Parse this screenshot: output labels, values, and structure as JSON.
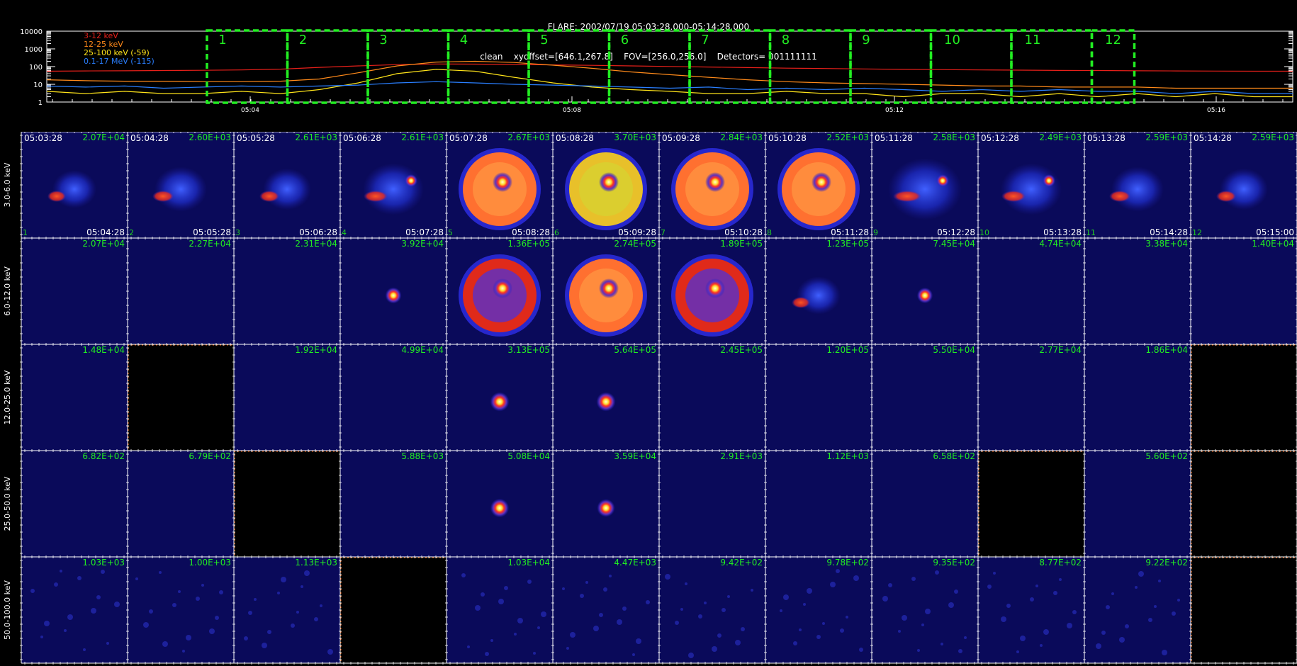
{
  "header": {
    "title": "FLARE: 2002/07/19 05:03:28.000-05:14:28.000",
    "subtitle": "clean    xyoffset=[646.1,267.8]    FOV=[256.0,256.0]    Detectors= 001111111"
  },
  "lightcurve": {
    "y_ticks": [
      "10000",
      "1000",
      "100",
      "10",
      "1"
    ],
    "x_ticks": [
      "05:04",
      "05:08",
      "05:12",
      "05:16"
    ],
    "legend": [
      {
        "label": "3-12 keV",
        "color": "#e8201a"
      },
      {
        "label": "12-25 keV",
        "color": "#ff8a1a"
      },
      {
        "label": "25-100 keV (-59)",
        "color": "#ffe41a"
      },
      {
        "label": "0.1-17 MeV (-115)",
        "color": "#2a7fff"
      }
    ],
    "interval_labels": [
      "1",
      "2",
      "3",
      "4",
      "5",
      "6",
      "7",
      "8",
      "9",
      "10",
      "11",
      "12"
    ],
    "interval_color": "#22ee22",
    "series": [
      {
        "name": "3-12 keV",
        "color": "#e8201a",
        "values": [
          55,
          57,
          58,
          60,
          62,
          65,
          72,
          90,
          110,
          130,
          140,
          138,
          132,
          125,
          118,
          110,
          102,
          95,
          88,
          82,
          78,
          74,
          70,
          67,
          65,
          63,
          61,
          60,
          58,
          57,
          56,
          55,
          55
        ]
      },
      {
        "name": "12-25 keV",
        "color": "#ff8a1a",
        "values": [
          18,
          16,
          15,
          15,
          14,
          14,
          15,
          20,
          45,
          110,
          180,
          200,
          170,
          120,
          80,
          50,
          35,
          25,
          18,
          14,
          12,
          11,
          10,
          9,
          8,
          8,
          7,
          7,
          7,
          6,
          6,
          6,
          6
        ]
      },
      {
        "name": "25-100 keV (-59)",
        "color": "#ffe41a",
        "values": [
          4,
          3,
          4,
          3,
          3,
          4,
          3,
          5,
          12,
          40,
          70,
          55,
          25,
          12,
          7,
          5,
          4,
          3,
          3,
          4,
          3,
          3,
          2,
          3,
          3,
          2,
          3,
          2,
          3,
          2,
          3,
          2,
          2
        ]
      },
      {
        "name": "0.1-17 MeV (-115)",
        "color": "#2a7fff",
        "values": [
          8,
          7,
          8,
          6,
          7,
          8,
          7,
          8,
          9,
          12,
          14,
          12,
          10,
          9,
          8,
          7,
          6,
          7,
          5,
          6,
          5,
          6,
          5,
          4,
          5,
          4,
          5,
          4,
          4,
          3,
          4,
          3,
          3
        ]
      }
    ]
  },
  "rows": [
    {
      "label": "3.0-6.0 keV",
      "values": [
        "2.07E+04",
        "2.60E+03",
        "2.61E+03",
        "2.61E+03",
        "2.67E+03",
        "3.70E+03",
        "2.84E+03",
        "2.52E+03",
        "2.58E+03",
        "2.49E+03",
        "2.59E+03",
        "2.59E+03"
      ]
    },
    {
      "label": "6.0-12.0 keV",
      "values": [
        "2.07E+04",
        "2.27E+04",
        "2.31E+04",
        "3.92E+04",
        "1.36E+05",
        "2.74E+05",
        "1.89E+05",
        "1.23E+05",
        "7.45E+04",
        "4.74E+04",
        "3.38E+04",
        "1.40E+04"
      ]
    },
    {
      "label": "12.0-25.0 keV",
      "values": [
        "1.48E+04",
        "",
        "1.92E+04",
        "4.99E+04",
        "3.13E+05",
        "5.64E+05",
        "2.45E+05",
        "1.20E+05",
        "5.50E+04",
        "2.77E+04",
        "1.86E+04",
        ""
      ]
    },
    {
      "label": "25.0-50.0 keV",
      "values": [
        "6.82E+02",
        "6.79E+02",
        "",
        "5.88E+03",
        "5.08E+04",
        "3.59E+04",
        "2.91E+03",
        "1.12E+03",
        "6.58E+02",
        "",
        "5.60E+02",
        ""
      ]
    },
    {
      "label": "50.0-100.0 keV",
      "values": [
        "1.03E+03",
        "1.00E+03",
        "1.13E+03",
        "",
        "1.03E+04",
        "4.47E+03",
        "9.42E+02",
        "9.78E+02",
        "9.35E+02",
        "8.77E+02",
        "9.22E+02",
        ""
      ]
    }
  ],
  "times_start": [
    "05:03:28",
    "05:04:28",
    "05:05:28",
    "05:06:28",
    "05:07:28",
    "05:08:28",
    "05:09:28",
    "05:10:28",
    "05:11:28",
    "05:12:28",
    "05:13:28",
    "05:14:28"
  ],
  "times_end": [
    "05:04:28",
    "05:05:28",
    "05:06:28",
    "05:07:28",
    "05:08:28",
    "05:09:28",
    "05:10:28",
    "05:11:28",
    "05:12:28",
    "05:13:28",
    "05:14:28",
    "05:15:00"
  ],
  "blank_cells": [
    [
      2,
      1
    ],
    [
      2,
      11
    ],
    [
      3,
      2
    ],
    [
      3,
      9
    ],
    [
      3,
      11
    ],
    [
      4,
      3
    ],
    [
      4,
      11
    ]
  ],
  "images": [
    [
      {
        "kind": "patch",
        "intensity": 0.35
      },
      {
        "kind": "patch",
        "intensity": 0.45
      },
      {
        "kind": "patch",
        "intensity": 0.4
      },
      {
        "kind": "patch",
        "intensity": 0.55
      },
      {
        "kind": "ring",
        "intensity": 0.85
      },
      {
        "kind": "ring",
        "intensity": 1.0
      },
      {
        "kind": "ring",
        "intensity": 0.9
      },
      {
        "kind": "ring",
        "intensity": 0.8
      },
      {
        "kind": "patch",
        "intensity": 0.7
      },
      {
        "kind": "patch",
        "intensity": 0.55
      },
      {
        "kind": "patch",
        "intensity": 0.45
      },
      {
        "kind": "patch",
        "intensity": 0.4
      }
    ],
    [
      {
        "kind": "none",
        "intensity": 0
      },
      {
        "kind": "none",
        "intensity": 0
      },
      {
        "kind": "none",
        "intensity": 0
      },
      {
        "kind": "dot",
        "intensity": 0.25
      },
      {
        "kind": "ring",
        "intensity": 0.45
      },
      {
        "kind": "ring",
        "intensity": 0.8
      },
      {
        "kind": "ring",
        "intensity": 0.4
      },
      {
        "kind": "patch",
        "intensity": 0.35
      },
      {
        "kind": "dot",
        "intensity": 0.2
      },
      {
        "kind": "none",
        "intensity": 0
      },
      {
        "kind": "none",
        "intensity": 0
      },
      {
        "kind": "none",
        "intensity": 0
      }
    ],
    [
      {
        "kind": "none",
        "intensity": 0
      },
      {
        "kind": "none",
        "intensity": 0
      },
      {
        "kind": "none",
        "intensity": 0
      },
      {
        "kind": "none",
        "intensity": 0
      },
      {
        "kind": "dot",
        "intensity": 0.6
      },
      {
        "kind": "dot",
        "intensity": 0.6
      },
      {
        "kind": "none",
        "intensity": 0
      },
      {
        "kind": "none",
        "intensity": 0
      },
      {
        "kind": "none",
        "intensity": 0
      },
      {
        "kind": "none",
        "intensity": 0
      },
      {
        "kind": "none",
        "intensity": 0
      },
      {
        "kind": "none",
        "intensity": 0
      }
    ],
    [
      {
        "kind": "none",
        "intensity": 0
      },
      {
        "kind": "none",
        "intensity": 0
      },
      {
        "kind": "none",
        "intensity": 0
      },
      {
        "kind": "none",
        "intensity": 0
      },
      {
        "kind": "dot",
        "intensity": 0.55
      },
      {
        "kind": "dot",
        "intensity": 0.45
      },
      {
        "kind": "none",
        "intensity": 0
      },
      {
        "kind": "none",
        "intensity": 0
      },
      {
        "kind": "none",
        "intensity": 0
      },
      {
        "kind": "none",
        "intensity": 0
      },
      {
        "kind": "none",
        "intensity": 0
      },
      {
        "kind": "none",
        "intensity": 0
      }
    ],
    [
      {
        "kind": "noise",
        "intensity": 0.2
      },
      {
        "kind": "noise",
        "intensity": 0.2
      },
      {
        "kind": "noise",
        "intensity": 0.2
      },
      {
        "kind": "none",
        "intensity": 0
      },
      {
        "kind": "noise",
        "intensity": 0.35
      },
      {
        "kind": "noise",
        "intensity": 0.2
      },
      {
        "kind": "noise",
        "intensity": 0.15
      },
      {
        "kind": "noise",
        "intensity": 0.15
      },
      {
        "kind": "noise",
        "intensity": 0.15
      },
      {
        "kind": "noise",
        "intensity": 0.15
      },
      {
        "kind": "noise",
        "intensity": 0.2
      },
      {
        "kind": "none",
        "intensity": 0
      }
    ]
  ],
  "colors": {
    "value_text": "#22ee22",
    "time_text": "#ffffff",
    "index_text": "#22cc22",
    "grid_line": "#ffffff",
    "blank_axis": "#ff6a1a",
    "image_bg": "#0a0a5a"
  }
}
